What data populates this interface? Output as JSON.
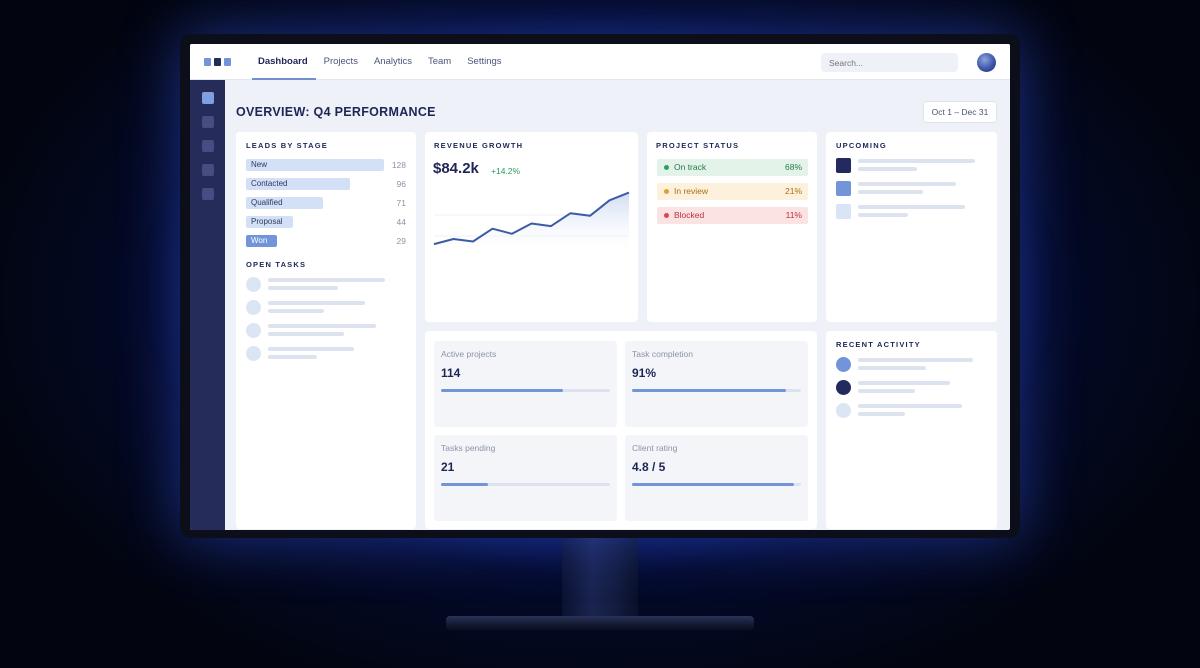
{
  "nav": {
    "items": [
      {
        "label": "Dashboard",
        "active": true
      },
      {
        "label": "Projects",
        "active": false
      },
      {
        "label": "Analytics",
        "active": false
      },
      {
        "label": "Team",
        "active": false
      },
      {
        "label": "Settings",
        "active": false
      }
    ],
    "search_placeholder": "Search..."
  },
  "page": {
    "title": "OVERVIEW: Q4 PERFORMANCE",
    "date_range": "Oct 1 – Dec 31"
  },
  "leads": {
    "title": "LEADS BY STAGE",
    "max": 128,
    "stages": [
      {
        "label": "New",
        "value": 128
      },
      {
        "label": "Contacted",
        "value": 96
      },
      {
        "label": "Qualified",
        "value": 71
      },
      {
        "label": "Proposal",
        "value": 44
      },
      {
        "label": "Won",
        "value": 29
      }
    ]
  },
  "open_tasks": {
    "title": "OPEN TASKS",
    "count": 4
  },
  "revenue": {
    "title": "REVENUE GROWTH",
    "value": "$84.2k",
    "change": "+14.2%",
    "trend": [
      30,
      34,
      32,
      42,
      38,
      46,
      44,
      54,
      52,
      64,
      70
    ]
  },
  "project_status": {
    "title": "PROJECT STATUS",
    "rows": [
      {
        "label": "On track",
        "value": "68%",
        "bg": "#e3f3e9",
        "dot": "#2f9e5f",
        "fg": "#257a4a"
      },
      {
        "label": "In review",
        "value": "21%",
        "bg": "#fdf1dd",
        "dot": "#e0a12c",
        "fg": "#a8700f"
      },
      {
        "label": "Blocked",
        "value": "11%",
        "bg": "#fbe3e4",
        "dot": "#d9474f",
        "fg": "#b8323a"
      }
    ]
  },
  "upcoming": {
    "title": "UPCOMING",
    "colors": [
      "#232a5e",
      "#7195d8",
      "#d9e4f4"
    ]
  },
  "metrics": [
    {
      "label": "Active projects",
      "value": "114",
      "progress": 0.72
    },
    {
      "label": "Task completion",
      "value": "91%",
      "progress": 0.91
    },
    {
      "label": "Tasks pending",
      "value": "21",
      "progress": 0.28
    },
    {
      "label": "Client rating",
      "value": "4.8 / 5",
      "progress": 0.96
    }
  ],
  "recent_activity": {
    "title": "RECENT ACTIVITY",
    "colors": [
      "#7195d8",
      "#232a5e",
      "#dbe5f4"
    ]
  }
}
